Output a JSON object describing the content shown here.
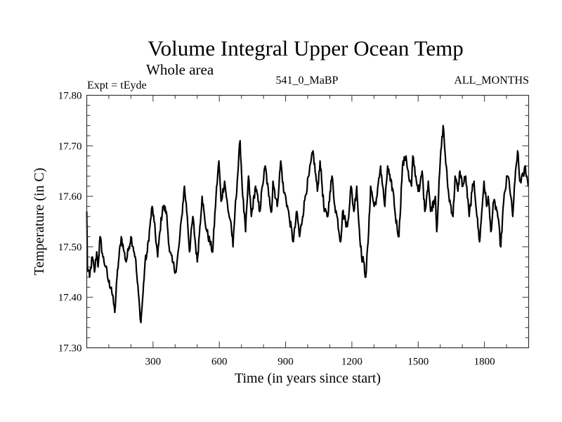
{
  "chart_data": {
    "type": "line",
    "title": "Volume Integral Upper Ocean Temp",
    "subtitle": "Whole area",
    "annotations": {
      "left": "Expt = tEyde",
      "center": "541_0_MaBP",
      "right": "ALL_MONTHS"
    },
    "xlabel": "Time (in years since start)",
    "ylabel": "Temperature (in C)",
    "xlim": [
      0,
      2000
    ],
    "ylim": [
      17.3,
      17.8
    ],
    "xticks": [
      300,
      600,
      900,
      1200,
      1500,
      1800
    ],
    "xtick_labels": [
      "300",
      "600",
      "900",
      "1200",
      "1500",
      "1800"
    ],
    "x_minor_step": 100,
    "yticks": [
      17.3,
      17.4,
      17.5,
      17.6,
      17.7,
      17.8
    ],
    "ytick_labels": [
      "17.30",
      "17.40",
      "17.50",
      "17.60",
      "17.70",
      "17.80"
    ],
    "y_minor_step": 0.02,
    "grid": false,
    "legend": "none",
    "series": [
      {
        "name": "Volume Integral Upper Ocean Temp",
        "color": "#000000",
        "x": [
          0,
          3,
          13,
          25,
          35,
          45,
          51,
          60,
          73,
          86,
          99,
          111,
          127,
          137,
          146,
          156,
          169,
          178,
          191,
          200,
          210,
          220,
          229,
          239,
          245,
          255,
          264,
          274,
          286,
          296,
          305,
          321,
          331,
          344,
          360,
          375,
          388,
          404,
          417,
          430,
          442,
          455,
          465,
          480,
          500,
          512,
          522,
          535,
          544,
          557,
          570,
          585,
          598,
          608,
          624,
          640,
          652,
          662,
          671,
          681,
          694,
          706,
          719,
          732,
          745,
          764,
          783,
          795,
          808,
          824,
          837,
          843,
          862,
          878,
          891,
          900,
          916,
          935,
          951,
          963,
          977,
          989,
          1005,
          1024,
          1044,
          1056,
          1075,
          1091,
          1101,
          1110,
          1123,
          1133,
          1149,
          1158,
          1171,
          1180,
          1196,
          1209,
          1222,
          1231,
          1244,
          1253,
          1263,
          1276,
          1285,
          1301,
          1314,
          1330,
          1349,
          1362,
          1374,
          1387,
          1397,
          1413,
          1429,
          1445,
          1460,
          1470,
          1476,
          1492,
          1505,
          1518,
          1530,
          1546,
          1556,
          1578,
          1584,
          1600,
          1613,
          1623,
          1632,
          1639,
          1658,
          1667,
          1680,
          1689,
          1702,
          1715,
          1731,
          1744,
          1753,
          1766,
          1778,
          1785,
          1798,
          1810,
          1817,
          1829,
          1842,
          1858,
          1874,
          1887,
          1903,
          1912,
          1928,
          1938,
          1950,
          1960,
          1976,
          1985,
          1998
        ],
        "y": [
          17.57,
          17.46,
          17.44,
          17.48,
          17.45,
          17.49,
          17.46,
          17.52,
          17.48,
          17.46,
          17.43,
          17.42,
          17.37,
          17.44,
          17.48,
          17.52,
          17.49,
          17.47,
          17.5,
          17.52,
          17.5,
          17.48,
          17.43,
          17.38,
          17.35,
          17.41,
          17.47,
          17.49,
          17.54,
          17.58,
          17.55,
          17.48,
          17.53,
          17.58,
          17.57,
          17.49,
          17.47,
          17.45,
          17.5,
          17.56,
          17.62,
          17.56,
          17.49,
          17.56,
          17.47,
          17.54,
          17.6,
          17.55,
          17.53,
          17.51,
          17.49,
          17.6,
          17.67,
          17.59,
          17.63,
          17.57,
          17.55,
          17.5,
          17.57,
          17.63,
          17.71,
          17.6,
          17.53,
          17.64,
          17.56,
          17.62,
          17.57,
          17.62,
          17.66,
          17.6,
          17.57,
          17.63,
          17.58,
          17.67,
          17.61,
          17.6,
          17.56,
          17.51,
          17.57,
          17.52,
          17.56,
          17.6,
          17.64,
          17.69,
          17.61,
          17.67,
          17.57,
          17.56,
          17.61,
          17.64,
          17.58,
          17.56,
          17.51,
          17.57,
          17.55,
          17.54,
          17.62,
          17.57,
          17.62,
          17.55,
          17.48,
          17.47,
          17.44,
          17.53,
          17.62,
          17.58,
          17.6,
          17.66,
          17.58,
          17.66,
          17.63,
          17.61,
          17.56,
          17.52,
          17.66,
          17.68,
          17.63,
          17.62,
          17.68,
          17.63,
          17.61,
          17.65,
          17.57,
          17.63,
          17.57,
          17.6,
          17.53,
          17.67,
          17.74,
          17.68,
          17.63,
          17.6,
          17.56,
          17.64,
          17.61,
          17.65,
          17.62,
          17.64,
          17.56,
          17.61,
          17.63,
          17.56,
          17.51,
          17.55,
          17.63,
          17.58,
          17.6,
          17.53,
          17.59,
          17.57,
          17.5,
          17.59,
          17.64,
          17.63,
          17.56,
          17.63,
          17.69,
          17.63,
          17.64,
          17.66,
          17.62
        ]
      }
    ]
  }
}
